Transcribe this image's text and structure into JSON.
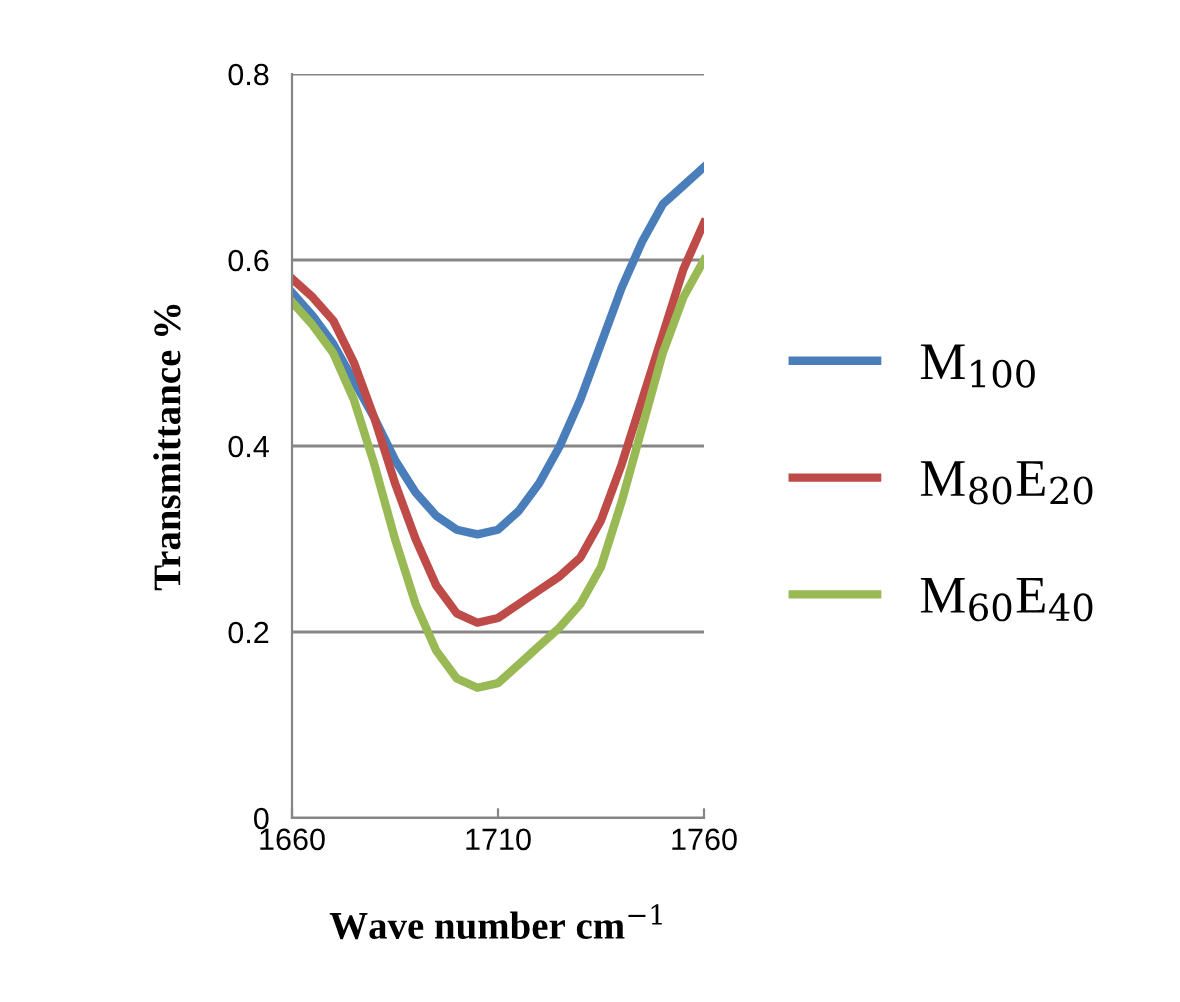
{
  "chart_data": {
    "type": "line",
    "xlabel": "Wave number cm$^{−1}$",
    "ylabel": "Transmittance %",
    "x": [
      1660,
      1665,
      1670,
      1675,
      1680,
      1685,
      1690,
      1695,
      1700,
      1705,
      1710,
      1715,
      1720,
      1725,
      1730,
      1735,
      1740,
      1745,
      1750,
      1755,
      1760
    ],
    "series": [
      {
        "name": "M$_{100}$",
        "color": "#4a7ebb",
        "values": [
          0.565,
          0.54,
          0.51,
          0.47,
          0.43,
          0.385,
          0.35,
          0.325,
          0.31,
          0.305,
          0.31,
          0.33,
          0.36,
          0.4,
          0.45,
          0.51,
          0.57,
          0.62,
          0.66,
          0.68,
          0.7
        ]
      },
      {
        "name": "M$_{80}$E$_{20}$",
        "color": "#be4b48",
        "values": [
          0.58,
          0.56,
          0.535,
          0.49,
          0.43,
          0.36,
          0.3,
          0.25,
          0.22,
          0.21,
          0.215,
          0.23,
          0.245,
          0.26,
          0.28,
          0.32,
          0.38,
          0.45,
          0.52,
          0.59,
          0.64
        ]
      },
      {
        "name": "M$_{60}$E$_{40}$",
        "color": "#98b954",
        "values": [
          0.555,
          0.53,
          0.5,
          0.45,
          0.38,
          0.3,
          0.23,
          0.18,
          0.15,
          0.14,
          0.145,
          0.165,
          0.185,
          0.205,
          0.23,
          0.27,
          0.34,
          0.42,
          0.5,
          0.56,
          0.6
        ]
      }
    ],
    "xlim": [
      1660,
      1760
    ],
    "xticks": [
      1660,
      1710,
      1760
    ],
    "ylim": [
      0,
      0.8
    ],
    "yticks": [
      0,
      0.2,
      0.4,
      0.6,
      0.8
    ],
    "grid": "y",
    "legend": "right",
    "marker": "none",
    "line_style": "solid"
  }
}
